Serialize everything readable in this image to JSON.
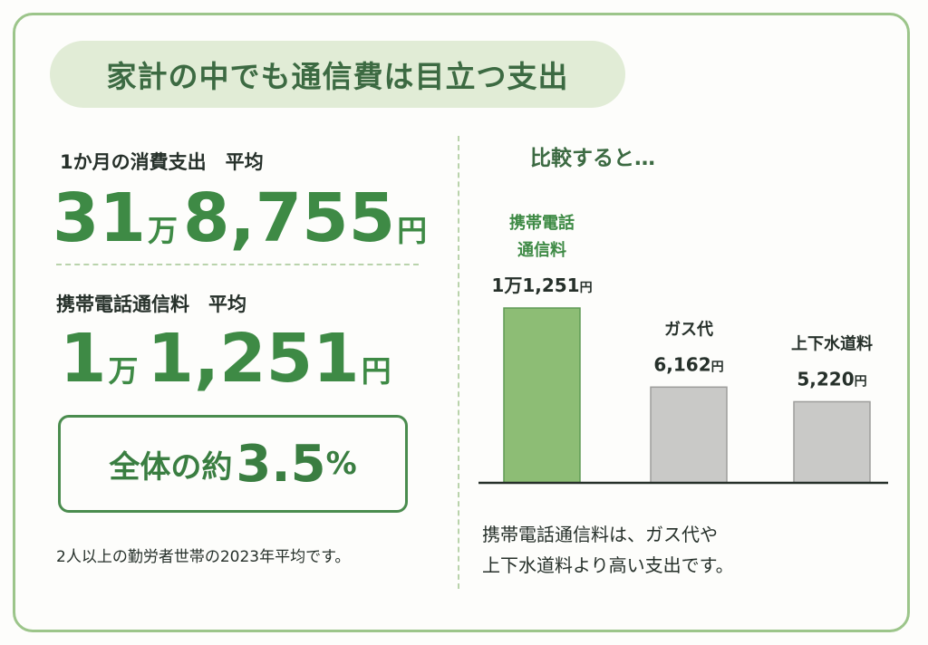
{
  "headline": "家計の中でも通信費は目立つ支出",
  "total": {
    "label": "1か月の消費支出　平均",
    "man_value": "31",
    "man_unit": "万",
    "rest_value": "8,755",
    "yen_unit": "円"
  },
  "mobile": {
    "label": "携帯電話通信料　平均",
    "man_value": "1",
    "man_unit": "万",
    "rest_value": "1,251",
    "yen_unit": "円"
  },
  "share": {
    "prefix": "全体の約",
    "value": "3.5",
    "unit": "%"
  },
  "source_note": "2人以上の勤労者世帯の2023年平均です。",
  "compare_title": "比較すると…",
  "caption": {
    "line1": "携帯電話通信料は、ガス代や",
    "line2": "上下水道料より高い支出です。"
  },
  "colors": {
    "highlight_bar": "#8dbd75",
    "other_bar": "#c9c9c7",
    "accent_green": "#3e8a45",
    "border_green": "#9cc58a"
  },
  "chart_data": {
    "type": "bar",
    "categories": [
      "携帯電話通信料",
      "ガス代",
      "上下水道料"
    ],
    "category_lines": [
      [
        "携帯電話",
        "通信料"
      ],
      [
        "ガス代"
      ],
      [
        "上下水道料"
      ]
    ],
    "values": [
      11251,
      6162,
      5220
    ],
    "value_labels": [
      {
        "number": "1万1,251",
        "unit": "円"
      },
      {
        "number": "6,162",
        "unit": "円"
      },
      {
        "number": "5,220",
        "unit": "円"
      }
    ],
    "highlight_index": 0,
    "ylim": [
      0,
      11251
    ],
    "grid": false,
    "legend": "none"
  }
}
